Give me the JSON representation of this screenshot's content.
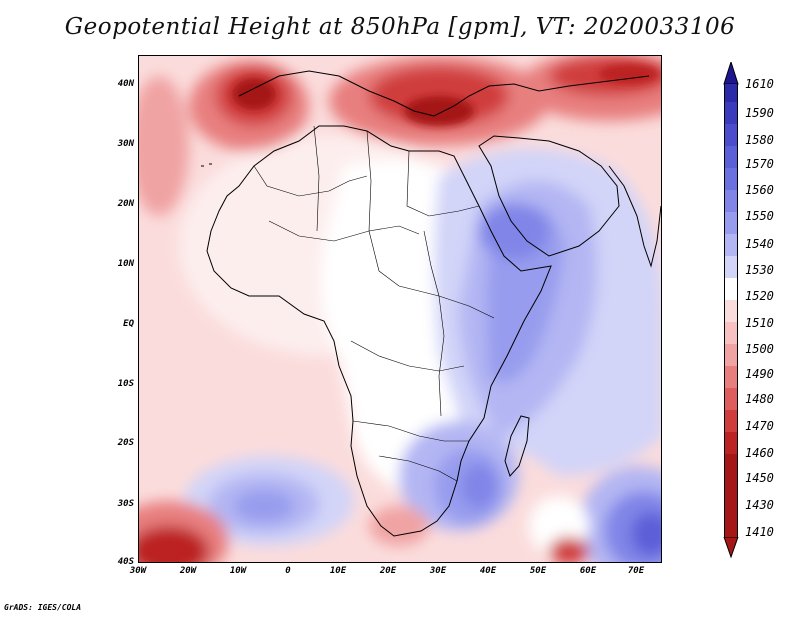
{
  "title": "Geopotential Height at 850hPa [gpm], VT: 2020033106",
  "credit": "GrADS: IGES/COLA",
  "axes": {
    "lat_labels": [
      "40N",
      "30N",
      "20N",
      "10N",
      "EQ",
      "10S",
      "20S",
      "30S",
      "40S"
    ],
    "lon_labels": [
      "30W",
      "20W",
      "10W",
      "0",
      "10E",
      "20E",
      "30E",
      "40E",
      "50E",
      "60E",
      "70E"
    ]
  },
  "colorbar": {
    "labels": [
      "1610",
      "1590",
      "1580",
      "1570",
      "1560",
      "1550",
      "1540",
      "1530",
      "1520",
      "1510",
      "1500",
      "1490",
      "1480",
      "1470",
      "1460",
      "1450",
      "1430",
      "1410"
    ],
    "colors": [
      "#1d1690",
      "#2b2aa8",
      "#3a3cbd",
      "#4b4dcc",
      "#5b5fd8",
      "#6c71e0",
      "#8085e7",
      "#979cee",
      "#b3b6f3",
      "#d2d4f8",
      "#ffffff",
      "#fbdcdc",
      "#f7c1c1",
      "#f0a3a3",
      "#e87f7f",
      "#de5e5e",
      "#d03d3d",
      "#bc2424",
      "#a51616"
    ]
  },
  "colors": {
    "high_red": "#a51616",
    "low_blue": "#3a3cbd",
    "coast": "#000000"
  }
}
